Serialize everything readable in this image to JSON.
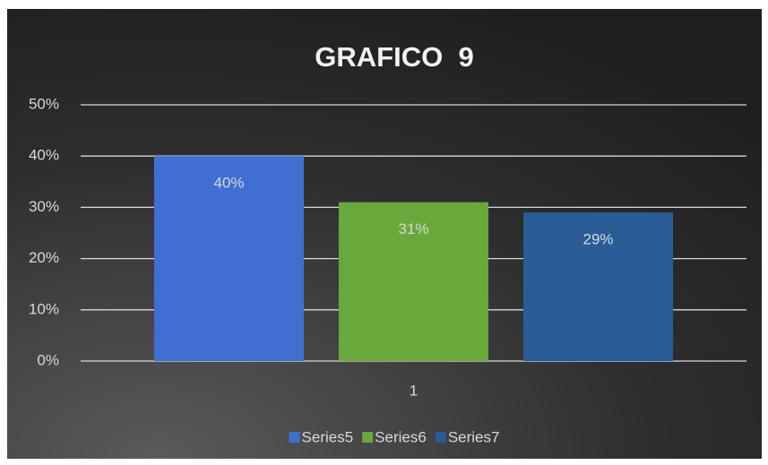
{
  "chart_data": {
    "type": "bar",
    "title": "GRAFICO  9",
    "categories": [
      "1"
    ],
    "series": [
      {
        "name": "Series5",
        "color": "#3f6fd1",
        "values": [
          40
        ],
        "value_labels": [
          "40%"
        ]
      },
      {
        "name": "Series6",
        "color": "#69a83a",
        "values": [
          31
        ],
        "value_labels": [
          "31%"
        ]
      },
      {
        "name": "Series7",
        "color": "#2a5c95",
        "values": [
          29
        ],
        "value_labels": [
          "29%"
        ]
      }
    ],
    "ylim": [
      0,
      50
    ],
    "yticks": [
      {
        "value": 0,
        "label": "0%"
      },
      {
        "value": 10,
        "label": "10%"
      },
      {
        "value": 20,
        "label": "20%"
      },
      {
        "value": 30,
        "label": "30%"
      },
      {
        "value": 40,
        "label": "40%"
      },
      {
        "value": 50,
        "label": "50%"
      }
    ],
    "grid": true,
    "legend": "bottom"
  }
}
